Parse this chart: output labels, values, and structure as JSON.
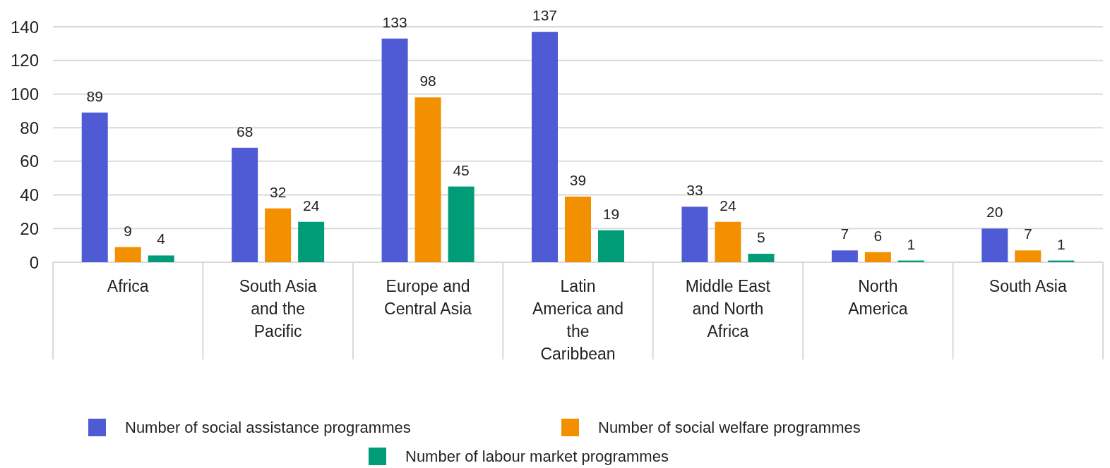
{
  "chart_data": {
    "type": "bar",
    "categories": [
      "Africa",
      "South Asia and the Pacific",
      "Europe and Central Asia",
      "Latin America and the Caribbean",
      "Middle East and North Africa",
      "North America",
      "South Asia"
    ],
    "series": [
      {
        "name": "Number of social assistance programmes",
        "color": "#4f5bd5",
        "values": [
          89,
          68,
          133,
          137,
          33,
          7,
          20
        ]
      },
      {
        "name": "Number of social welfare programmes",
        "color": "#f39000",
        "values": [
          9,
          32,
          98,
          39,
          24,
          6,
          7
        ]
      },
      {
        "name": "Number of labour market programmes",
        "color": "#009b77",
        "values": [
          4,
          24,
          45,
          19,
          5,
          1,
          1
        ]
      }
    ],
    "ylim": [
      0,
      140
    ],
    "yticks": [
      0,
      20,
      40,
      60,
      80,
      100,
      120,
      140
    ],
    "grid": "y",
    "legend": "bottom",
    "data_labels": true
  }
}
